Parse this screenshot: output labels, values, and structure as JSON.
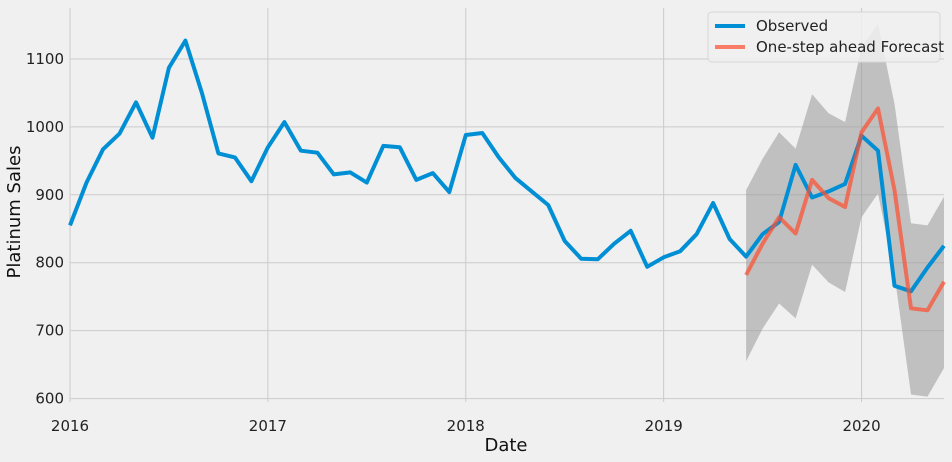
{
  "chart_data": {
    "type": "line",
    "title": "",
    "xlabel": "Date",
    "ylabel": "Platinum Sales",
    "xlim": [
      "2016-01-01",
      "2020-06-01"
    ],
    "ylim": [
      595,
      1175
    ],
    "x_ticks": [
      "2016",
      "2017",
      "2018",
      "2019",
      "2020"
    ],
    "y_ticks": [
      600,
      700,
      800,
      900,
      1000,
      1100
    ],
    "grid": true,
    "legend_position": "top-right",
    "series": [
      {
        "name": "Observed",
        "color": "#008fd5",
        "style": "line",
        "x": [
          "2016-01",
          "2016-02",
          "2016-03",
          "2016-04",
          "2016-05",
          "2016-06",
          "2016-07",
          "2016-08",
          "2016-09",
          "2016-10",
          "2016-11",
          "2016-12",
          "2017-01",
          "2017-02",
          "2017-03",
          "2017-04",
          "2017-05",
          "2017-06",
          "2017-07",
          "2017-08",
          "2017-09",
          "2017-10",
          "2017-11",
          "2017-12",
          "2018-01",
          "2018-02",
          "2018-03",
          "2018-04",
          "2018-05",
          "2018-06",
          "2018-07",
          "2018-08",
          "2018-09",
          "2018-10",
          "2018-11",
          "2018-12",
          "2019-01",
          "2019-02",
          "2019-03",
          "2019-04",
          "2019-05",
          "2019-06",
          "2019-07",
          "2019-08",
          "2019-09",
          "2019-10",
          "2019-11",
          "2019-12",
          "2020-01",
          "2020-02",
          "2020-03",
          "2020-04",
          "2020-05",
          "2020-06"
        ],
        "y": [
          855,
          918,
          967,
          990,
          1036,
          984,
          1087,
          1127,
          1050,
          961,
          955,
          920,
          970,
          1007,
          965,
          962,
          930,
          933,
          918,
          972,
          970,
          922,
          932,
          904,
          988,
          991,
          955,
          925,
          905,
          885,
          832,
          806,
          805,
          828,
          847,
          794,
          808,
          817,
          842,
          888,
          835,
          809,
          842,
          860,
          944,
          896,
          905,
          916,
          987,
          965,
          766,
          758,
          793,
          825
        ]
      },
      {
        "name": "One-step ahead Forecast",
        "color": "#fc4f30",
        "style": "line",
        "x": [
          "2019-06",
          "2019-07",
          "2019-08",
          "2019-09",
          "2019-10",
          "2019-11",
          "2019-12",
          "2020-01",
          "2020-02",
          "2020-03",
          "2020-04",
          "2020-05",
          "2020-06"
        ],
        "y": [
          782,
          828,
          867,
          843,
          922,
          895,
          882,
          992,
          1027,
          907,
          733,
          730,
          772
        ]
      },
      {
        "name": "",
        "color": "#999999",
        "style": "band",
        "x": [
          "2019-06",
          "2019-07",
          "2019-08",
          "2019-09",
          "2019-10",
          "2019-11",
          "2019-12",
          "2020-01",
          "2020-02",
          "2020-03",
          "2020-04",
          "2020-05",
          "2020-06"
        ],
        "lower": [
          655,
          703,
          740,
          718,
          797,
          771,
          757,
          867,
          902,
          782,
          606,
          603,
          645
        ],
        "upper": [
          907,
          953,
          992,
          968,
          1048,
          1020,
          1007,
          1117,
          1152,
          1034,
          858,
          855,
          897
        ]
      }
    ]
  }
}
